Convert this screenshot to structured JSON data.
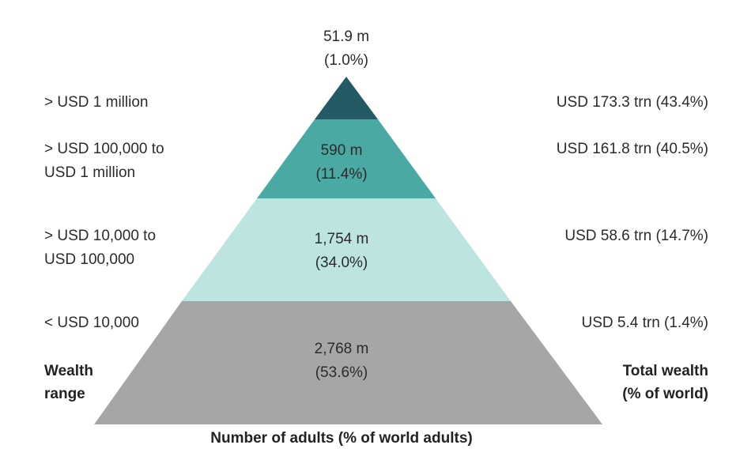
{
  "colors": {
    "tier_1": "#235a63",
    "tier_2": "#4aaaa3",
    "tier_3": "#bde4e1",
    "tier_4": "#a6a6a6"
  },
  "top_label": {
    "count": "51.9 m",
    "share": "(1.0%)"
  },
  "tiers": [
    {
      "range_line1": "> USD 1 million",
      "range_line2": "",
      "adults_count": "",
      "adults_share": "",
      "wealth": "USD 173.3 trn (43.4%)"
    },
    {
      "range_line1": "> USD 100,000 to",
      "range_line2": "USD 1 million",
      "adults_count": "590 m",
      "adults_share": "(11.4%)",
      "wealth": "USD 161.8 trn (40.5%)"
    },
    {
      "range_line1": "> USD 10,000 to",
      "range_line2": "USD 100,000",
      "adults_count": "1,754 m",
      "adults_share": "(34.0%)",
      "wealth": "USD 58.6 trn (14.7%)"
    },
    {
      "range_line1": "< USD 10,000",
      "range_line2": "",
      "adults_count": "2,768 m",
      "adults_share": "(53.6%)",
      "wealth": "USD 5.4 trn (1.4%)"
    }
  ],
  "wealth_range_title": [
    "Wealth",
    "range"
  ],
  "total_wealth_title": [
    "Total wealth",
    "(% of world)"
  ],
  "bottom_title": "Number of adults (% of world adults)"
}
